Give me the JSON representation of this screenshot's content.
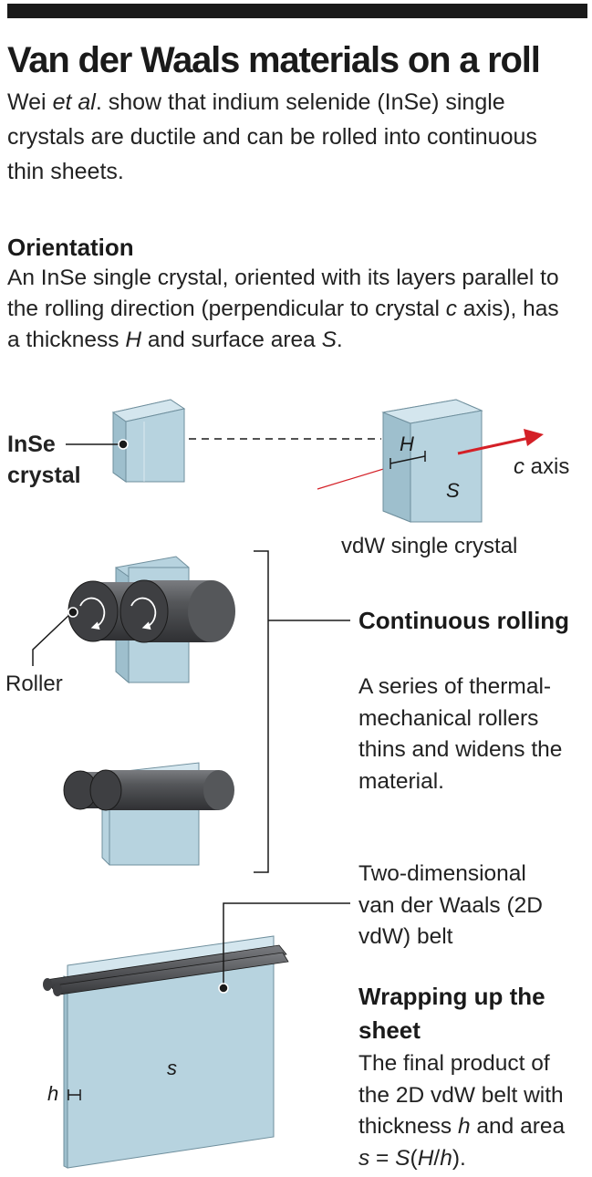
{
  "header": {
    "title": "Van der Waals materials on a roll",
    "intro_author": "Wei",
    "intro_etal": "et al",
    "intro_rest": ". show that indium selenide (InSe) single crystals are ductile and can be rolled into continuous thin sheets."
  },
  "orientation": {
    "heading": "Orientation",
    "text_part1": "An InSe single crystal, oriented with its layers parallel to the rolling direction (perpendicular to crystal",
    "text_c": "c",
    "text_part2": "axis), has a thickness",
    "text_H": "H",
    "text_part3": "and surface area",
    "text_S": "S",
    "text_end": "."
  },
  "diagram": {
    "inse_line1": "InSe",
    "inse_line2": "crystal",
    "H_label": "H",
    "S_label": "S",
    "c_axis_c": "c",
    "c_axis_rest": " axis",
    "vdw_crystal_label": "vdW single crystal",
    "roller_label": "Roller",
    "s_label": "s",
    "h_label": "h"
  },
  "rolling": {
    "heading": "Continuous rolling",
    "text": "A series of thermal-mechanical rollers thins and widens the material."
  },
  "belt": {
    "label": "Two-dimensional van der Waals (2D vdW) belt"
  },
  "wrapping": {
    "heading": "Wrapping up the sheet",
    "text_part1": "The final product of the 2D vdW belt with thickness",
    "text_h": "h",
    "text_part2": "and area",
    "text_s": "s",
    "text_eq": " = ",
    "text_S": "S",
    "text_open": "(",
    "text_H": "H",
    "text_slash": "/",
    "text_h2": "h",
    "text_close": ")."
  },
  "colors": {
    "crystal_front": "#b7d3df",
    "crystal_side": "#9ebfcd",
    "crystal_top": "#d4e6ee",
    "roller": "#4d4f52",
    "arrow": "#d42027",
    "ink": "#1a1a1a"
  }
}
